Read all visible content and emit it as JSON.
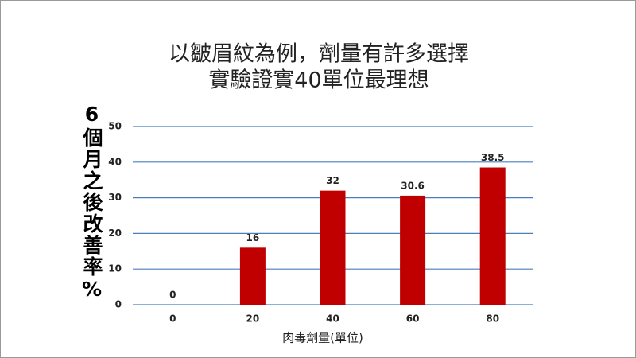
{
  "chart_data": {
    "type": "bar",
    "title": [
      "以皺眉紋為例，劑量有許多選擇",
      "實驗證實40單位最理想"
    ],
    "y_label": "6個月之後改善率%",
    "x_label": "肉毒劑量(單位)",
    "categories": [
      "0",
      "20",
      "40",
      "60",
      "80"
    ],
    "values": [
      0,
      16,
      32,
      30.6,
      38.5
    ],
    "color": "#c00000",
    "ylim": [
      0,
      50
    ],
    "yticks": [
      0,
      10,
      20,
      30,
      40,
      50
    ],
    "grid": true,
    "grid_color": "#4a7ebb"
  }
}
